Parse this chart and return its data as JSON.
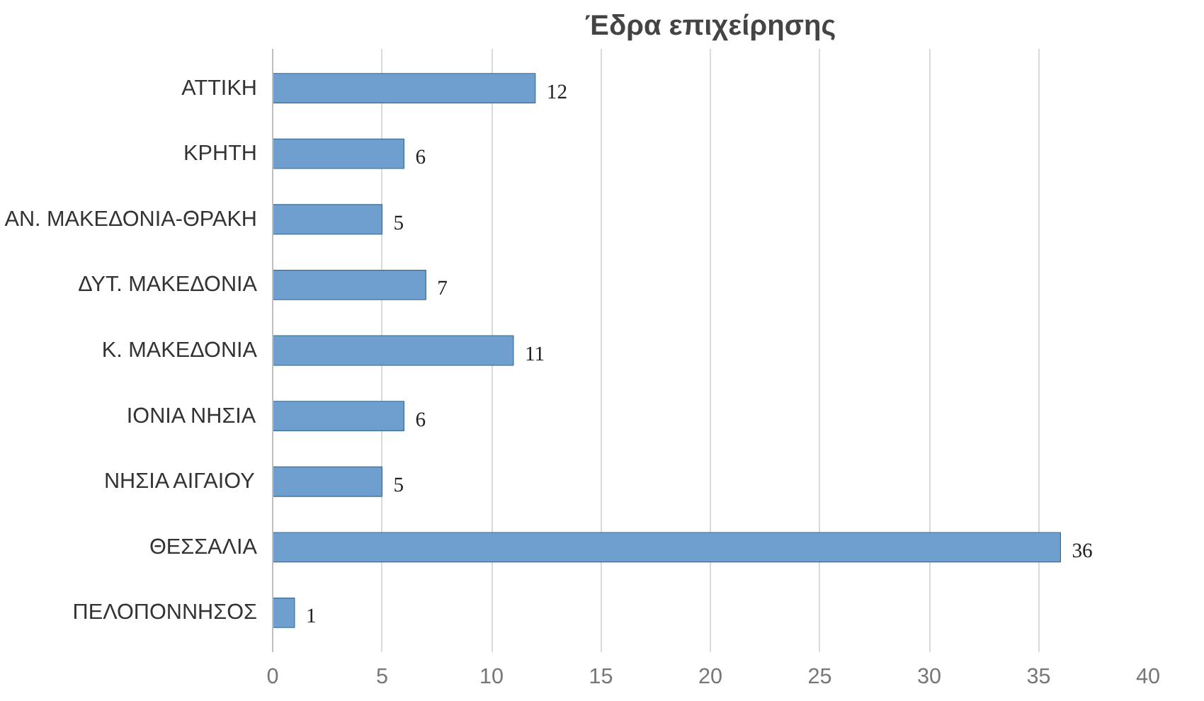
{
  "chart_data": {
    "type": "bar",
    "orientation": "horizontal",
    "title": "Έδρα επιχείρησης",
    "categories": [
      "ΑΤΤΙΚΗ",
      "ΚΡΗΤΗ",
      "ΑΝ. ΜΑΚΕΔΟΝΙΑ-ΘΡΑΚΗ",
      "ΔΥΤ. ΜΑΚΕΔΟΝΙΑ",
      "Κ. ΜΑΚΕΔΟΝΙΑ",
      "ΙΟΝΙΑ ΝΗΣΙΑ",
      "ΝΗΣΙΑ ΑΙΓΑΙΟΥ",
      "ΘΕΣΣΑΛΙΑ",
      "ΠΕΛΟΠΟΝΝΗΣΟΣ"
    ],
    "values": [
      12,
      6,
      5,
      7,
      11,
      6,
      5,
      36,
      1
    ],
    "color": "#6f9fcf",
    "xlim": [
      0,
      40
    ],
    "xticks": [
      0,
      5,
      10,
      15,
      20,
      25,
      30,
      35,
      40
    ],
    "grid": "x",
    "data_labels": true
  }
}
